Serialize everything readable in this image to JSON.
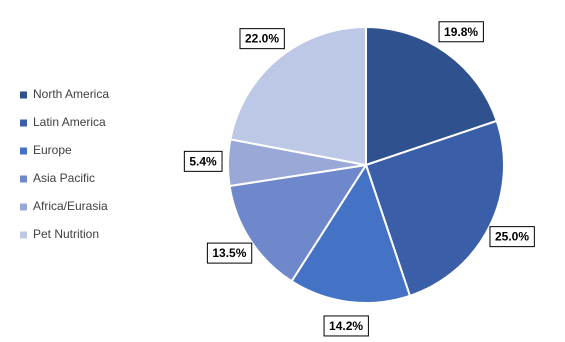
{
  "chart_data": {
    "type": "pie",
    "categories": [
      "North America",
      "Latin America",
      "Europe",
      "Asia Pacific",
      "Africa/Eurasia",
      "Pet Nutrition"
    ],
    "values": [
      19.8,
      25.0,
      14.2,
      13.5,
      5.4,
      22.0
    ],
    "value_labels": [
      "19.8%",
      "25.0%",
      "14.2%",
      "13.5%",
      "5.4%",
      "22.0%"
    ],
    "colors": [
      "#2f528f",
      "#3a5ea8",
      "#4472c4",
      "#6f88cc",
      "#9aa8d8",
      "#bdc7e6"
    ],
    "legend": "left"
  }
}
